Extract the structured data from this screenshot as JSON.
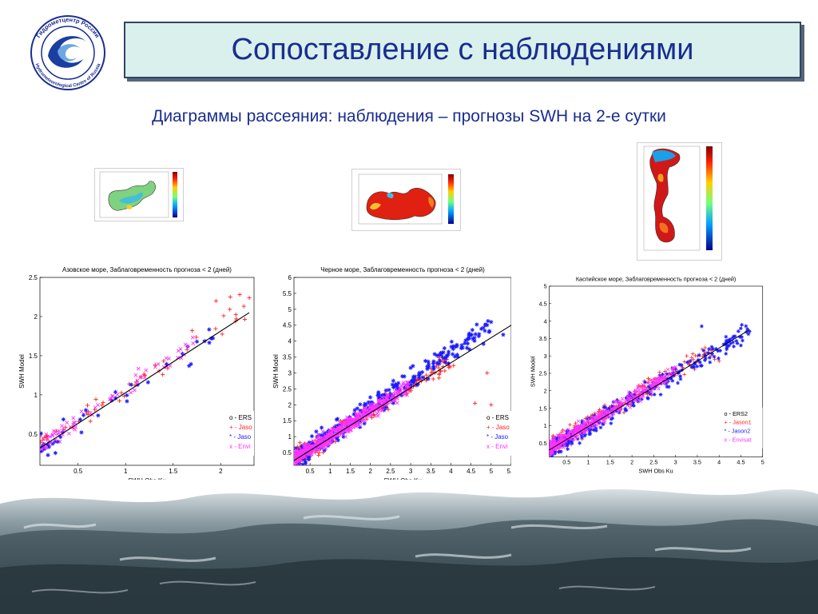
{
  "logo": {
    "ring_text_top": "Гидрометцентр России",
    "ring_text_bottom": "Hydrometeorological Centre of Russia",
    "icon": "wave-globe-icon"
  },
  "header": {
    "title": "Сопоставление с наблюдениями",
    "subtitle": "Диаграммы рассеяния: наблюдения – прогнозы SWH на 2-е сутки"
  },
  "maps": [
    {
      "name": "azov-sea-map",
      "colorbar": "jet"
    },
    {
      "name": "black-sea-map",
      "colorbar": "jet"
    },
    {
      "name": "caspian-sea-map",
      "colorbar": "jet"
    }
  ],
  "colors": {
    "ers": "#000000",
    "jason": "#ff2222",
    "jason2": "#1a1aff",
    "envisat": "#ff33ff",
    "title": "#1a2d8f",
    "fit_line": "#000000"
  },
  "chart_data": [
    {
      "type": "scatter",
      "title": "Азовское море, Заблаговременность прогноза < 2 (дней)",
      "xlabel": "SWH Obs Ku",
      "ylabel": "SWH Model",
      "xlim": [
        0.1,
        2.35
      ],
      "ylim": [
        0.1,
        2.5
      ],
      "xticks": [
        "0.5",
        "1",
        "1.5",
        "2"
      ],
      "xtick_values": [
        0.5,
        1,
        1.5,
        2
      ],
      "yticks": [
        "0.5",
        "1",
        "1.5",
        "2",
        "2.5"
      ],
      "ytick_values": [
        0.5,
        1,
        1.5,
        2,
        2.5
      ],
      "legend": [
        "o - ERS",
        "+ - Jaso",
        "* - Jaso",
        "x - Envi"
      ],
      "legend_position": "lower-right",
      "fit_line": [
        [
          0.1,
          0.32
        ],
        [
          2.3,
          2.05
        ]
      ],
      "series": [
        {
          "name": "Jason1",
          "marker": "plus",
          "color": "#ff2222",
          "center": [
            [
              0.1,
              0.35
            ],
            [
              2.3,
              2.1
            ]
          ],
          "spread": 0.22,
          "count": 55,
          "extra_points": [
            [
              2.1,
              2.25
            ],
            [
              2.2,
              2.28
            ],
            [
              2.3,
              2.24
            ],
            [
              1.95,
              2.2
            ],
            [
              1.7,
              1.82
            ]
          ]
        },
        {
          "name": "Jason2",
          "marker": "star",
          "color": "#1a1aff",
          "center": [
            [
              0.1,
              0.3
            ],
            [
              2.0,
              1.8
            ]
          ],
          "spread": 0.25,
          "count": 40,
          "extra_points": [
            [
              1.75,
              1.68
            ],
            [
              1.9,
              1.72
            ]
          ]
        },
        {
          "name": "Envisat",
          "marker": "x",
          "color": "#ff33ff",
          "center": [
            [
              0.1,
              0.35
            ],
            [
              1.8,
              1.7
            ]
          ],
          "spread": 0.22,
          "count": 70
        }
      ]
    },
    {
      "type": "scatter",
      "title": "Черное море, Заблаговременность прогноза < 2 (дней)",
      "xlabel": "SWH Obs Ku",
      "ylabel": "SWH Model",
      "xlim": [
        0.1,
        5.5
      ],
      "ylim": [
        0.1,
        6
      ],
      "xticks": [
        "0.5",
        "1",
        "1.5",
        "2",
        "2.5",
        "3",
        "3.5",
        "4",
        "4.5",
        "5",
        "5.5"
      ],
      "xtick_values": [
        0.5,
        1,
        1.5,
        2,
        2.5,
        3,
        3.5,
        4,
        4.5,
        5,
        5.5
      ],
      "yticks": [
        "0.5",
        "1",
        "1.5",
        "2",
        "2.5",
        "3",
        "3.5",
        "4",
        "4.5",
        "5",
        "5.5",
        "6"
      ],
      "ytick_values": [
        0.5,
        1,
        1.5,
        2,
        2.5,
        3,
        3.5,
        4,
        4.5,
        5,
        5.5,
        6
      ],
      "legend": [
        "o - ERS",
        "+ - Jaso",
        "* - Jaso",
        "x - Envi"
      ],
      "legend_position": "lower-right",
      "fit_line": [
        [
          0.1,
          0.25
        ],
        [
          5.5,
          4.5
        ]
      ],
      "series": [
        {
          "name": "Jason1",
          "marker": "plus",
          "color": "#ff2222",
          "center": [
            [
              0.1,
              0.3
            ],
            [
              4.0,
              3.4
            ]
          ],
          "spread": 0.45,
          "count": 260,
          "extra_points": [
            [
              4.6,
              2.05
            ],
            [
              5.0,
              2.0
            ],
            [
              4.9,
              3.0
            ]
          ]
        },
        {
          "name": "Jason2",
          "marker": "star",
          "color": "#1a1aff",
          "center": [
            [
              0.1,
              0.3
            ],
            [
              5.0,
              4.5
            ]
          ],
          "spread": 0.5,
          "count": 320,
          "extra_points": [
            [
              4.9,
              4.5
            ],
            [
              5.0,
              4.6
            ],
            [
              5.3,
              4.2
            ]
          ]
        },
        {
          "name": "Envisat",
          "marker": "x",
          "color": "#ff33ff",
          "center": [
            [
              0.1,
              0.3
            ],
            [
              3.0,
              2.6
            ]
          ],
          "spread": 0.35,
          "count": 520
        }
      ]
    },
    {
      "type": "scatter",
      "title": "Каспийское море, Заблаговременность прогноза < 2 (дней)",
      "xlabel": "SWH Obs Ku",
      "ylabel": "SWH Model",
      "xlim": [
        0.1,
        5
      ],
      "ylim": [
        0.1,
        5
      ],
      "xticks": [
        "0.5",
        "1",
        "1.5",
        "2",
        "2.5",
        "3",
        "3.5",
        "4",
        "4.5",
        "5"
      ],
      "xtick_values": [
        0.5,
        1,
        1.5,
        2,
        2.5,
        3,
        3.5,
        4,
        4.5,
        5
      ],
      "yticks": [
        "0.5",
        "1",
        "1.5",
        "2",
        "2.5",
        "3",
        "3.5",
        "4",
        "4.5",
        "5"
      ],
      "ytick_values": [
        0.5,
        1,
        1.5,
        2,
        2.5,
        3,
        3.5,
        4,
        4.5,
        5
      ],
      "legend": [
        "o - ERS2",
        "+ - Jason1",
        "* - Jason2",
        "x - Envisat"
      ],
      "legend_position": "lower-right",
      "fit_line": [
        [
          0.1,
          0.3
        ],
        [
          4.7,
          3.75
        ]
      ],
      "series": [
        {
          "name": "Jason1",
          "marker": "plus",
          "color": "#ff2222",
          "center": [
            [
              0.1,
              0.35
            ],
            [
              3.8,
              3.2
            ]
          ],
          "spread": 0.42,
          "count": 260,
          "extra_points": [
            [
              3.9,
              2.9
            ],
            [
              4.0,
              2.85
            ]
          ]
        },
        {
          "name": "Jason2",
          "marker": "star",
          "color": "#1a1aff",
          "center": [
            [
              0.1,
              0.3
            ],
            [
              4.7,
              3.75
            ]
          ],
          "spread": 0.45,
          "count": 300,
          "extra_points": [
            [
              4.7,
              3.7
            ],
            [
              4.5,
              3.3
            ],
            [
              3.6,
              3.85
            ]
          ]
        },
        {
          "name": "Envisat",
          "marker": "x",
          "color": "#ff33ff",
          "center": [
            [
              0.1,
              0.35
            ],
            [
              3.0,
              2.55
            ]
          ],
          "spread": 0.32,
          "count": 420
        }
      ]
    }
  ]
}
